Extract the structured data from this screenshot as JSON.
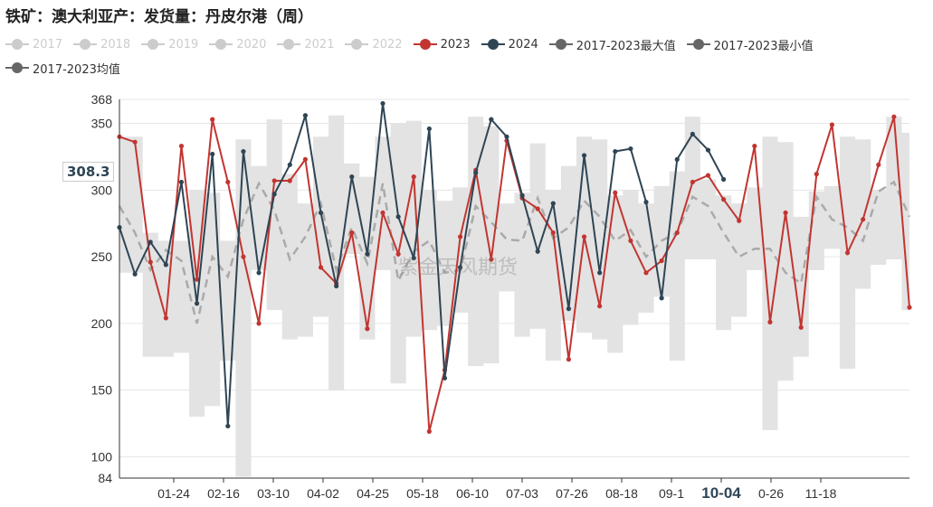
{
  "title": "铁矿：澳大利亚产：发货量：丹皮尔港（周）",
  "legend": [
    {
      "label": "2017",
      "color": "#cccccc",
      "faded": true
    },
    {
      "label": "2018",
      "color": "#cccccc",
      "faded": true
    },
    {
      "label": "2019",
      "color": "#cccccc",
      "faded": true
    },
    {
      "label": "2020",
      "color": "#cccccc",
      "faded": true
    },
    {
      "label": "2021",
      "color": "#cccccc",
      "faded": true
    },
    {
      "label": "2022",
      "color": "#cccccc",
      "faded": true
    },
    {
      "label": "2023",
      "color": "#c23531",
      "faded": false
    },
    {
      "label": "2024",
      "color": "#2f4554",
      "faded": false
    },
    {
      "label": "2017-2023最大值",
      "color": "#666666",
      "faded": false
    },
    {
      "label": "2017-2023最小值",
      "color": "#666666",
      "faded": false
    },
    {
      "label": "2017-2023均值",
      "color": "#666666",
      "faded": false
    }
  ],
  "y_pointer_label": "308.3",
  "watermark": "紫金天风期货",
  "colors": {
    "s2023": "#c23531",
    "s2024": "#2f4554",
    "band": "#e3e3e3",
    "avg": "#aaaaaa",
    "grid": "#e6e6e6"
  },
  "chart_data": {
    "type": "line",
    "title": "铁矿：澳大利亚产：发货量：丹皮尔港（周）",
    "ylim": [
      84,
      368
    ],
    "yticks": [
      84,
      100,
      150,
      200,
      250,
      300,
      350,
      368
    ],
    "xticks": [
      "01-24",
      "02-16",
      "03-10",
      "04-02",
      "04-25",
      "05-18",
      "06-10",
      "07-03",
      "07-26",
      "08-18",
      "09-1",
      "10-04",
      "0-26",
      "11-18"
    ],
    "highlight_xtick": "10-04",
    "n_weeks": 52,
    "band_max": [
      340,
      340,
      268,
      262,
      262,
      300,
      298,
      262,
      338,
      318,
      353,
      312,
      290,
      340,
      356,
      320,
      310,
      340,
      350,
      352,
      300,
      292,
      302,
      355,
      348,
      290,
      298,
      335,
      300,
      318,
      340,
      338,
      296,
      300,
      290,
      303,
      314,
      355,
      308,
      296,
      290,
      302,
      340,
      336,
      280,
      299,
      303,
      340,
      338,
      300,
      355,
      343
    ],
    "band_min": [
      238,
      238,
      175,
      175,
      178,
      130,
      138,
      172,
      85,
      240,
      210,
      188,
      190,
      205,
      150,
      252,
      188,
      240,
      155,
      190,
      195,
      198,
      208,
      168,
      170,
      224,
      190,
      196,
      172,
      202,
      193,
      188,
      178,
      199,
      208,
      220,
      172,
      248,
      248,
      195,
      205,
      240,
      120,
      157,
      175,
      240,
      256,
      166,
      226,
      244,
      248,
      210
    ],
    "avg": [
      288,
      268,
      240,
      255,
      247,
      200,
      250,
      235,
      278,
      305,
      285,
      248,
      265,
      290,
      240,
      272,
      245,
      305,
      232,
      254,
      262,
      238,
      240,
      288,
      276,
      263,
      262,
      294,
      264,
      272,
      292,
      280,
      262,
      270,
      250,
      262,
      268,
      295,
      288,
      268,
      250,
      256,
      256,
      238,
      230,
      295,
      278,
      272,
      262,
      299,
      306,
      280
    ],
    "series": [
      {
        "name": "2023",
        "values": [
          340,
          336,
          246,
          204,
          333,
          233,
          353,
          306,
          250,
          200,
          307,
          307,
          323,
          242,
          230,
          268,
          196,
          283,
          252,
          310,
          119,
          165,
          265,
          315,
          248,
          337,
          294,
          286,
          268,
          173,
          265,
          213,
          298,
          262,
          238,
          247,
          268,
          306,
          311,
          293,
          277,
          333,
          201,
          283,
          197,
          312,
          349,
          253,
          278,
          319,
          355,
          212
        ]
      },
      {
        "name": "2024",
        "values": [
          272,
          237,
          261,
          244,
          306,
          215,
          327,
          123,
          329,
          238,
          297,
          319,
          356,
          283,
          228,
          310,
          252,
          365,
          280,
          249,
          346,
          159,
          242,
          313,
          353,
          340,
          296,
          254,
          290,
          211,
          326,
          238,
          329,
          331,
          291,
          219,
          323,
          342,
          330,
          308
        ]
      }
    ]
  }
}
